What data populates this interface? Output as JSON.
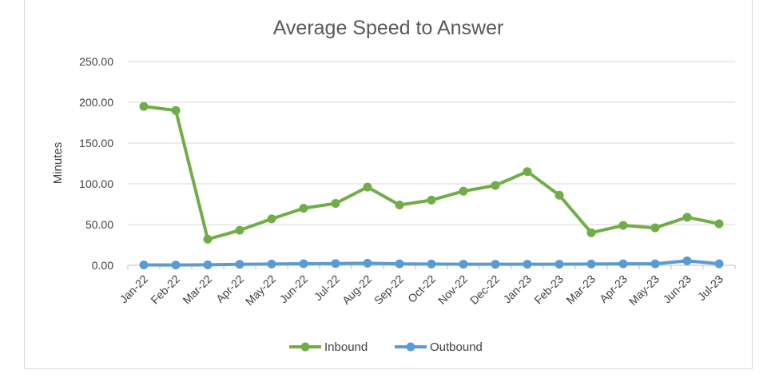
{
  "chart_data": {
    "type": "line",
    "title": "Average Speed to Answer",
    "xlabel": "",
    "ylabel": "Minutes",
    "ylim": [
      0,
      250
    ],
    "yticks": [
      "0.00",
      "50.00",
      "100.00",
      "150.00",
      "200.00",
      "250.00"
    ],
    "grid": true,
    "legend_position": "bottom",
    "categories": [
      "Jan-22",
      "Feb-22",
      "Mar-22",
      "Apr-22",
      "May-22",
      "Jun-22",
      "Jul-22",
      "Aug-22",
      "Sep-22",
      "Oct-22",
      "Nov-22",
      "Dec-22",
      "Jan-23",
      "Feb-23",
      "Mar-23",
      "Apr-23",
      "May-23",
      "Jun-23",
      "Jul-23"
    ],
    "series": [
      {
        "name": "Inbound",
        "color": "#70ad47",
        "values": [
          195,
          190,
          32,
          43,
          57,
          70,
          76,
          96,
          74,
          80,
          91,
          98,
          115,
          86,
          40,
          49,
          46,
          59,
          51
        ]
      },
      {
        "name": "Outbound",
        "color": "#5b9bd5",
        "values": [
          0.5,
          0.4,
          0.6,
          1.2,
          1.6,
          2.0,
          2.2,
          2.6,
          1.8,
          1.6,
          1.4,
          1.3,
          1.4,
          1.4,
          1.6,
          1.8,
          1.8,
          5.5,
          2.0
        ]
      }
    ]
  }
}
